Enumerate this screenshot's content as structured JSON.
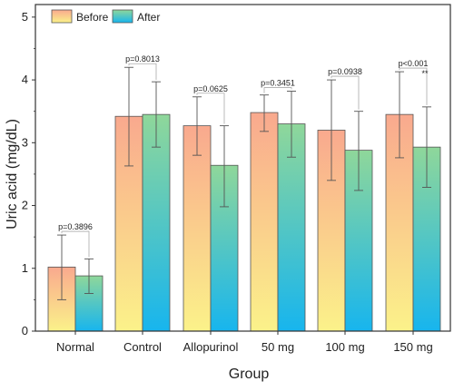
{
  "chart_data": {
    "type": "bar",
    "xlabel": "Group",
    "ylabel": "Uric acid (mg/dL)",
    "ylim": [
      0,
      5.2
    ],
    "yticks": [
      "0",
      "1",
      "2",
      "3",
      "4",
      "5"
    ],
    "categories": [
      "Normal",
      "Control",
      "Allopurinol",
      "50 mg",
      "100 mg",
      "150 mg"
    ],
    "series": [
      {
        "name": "Before",
        "values": [
          1.02,
          3.42,
          3.27,
          3.48,
          3.2,
          3.45
        ],
        "err_low": [
          0.5,
          2.63,
          2.8,
          3.18,
          2.4,
          2.76
        ],
        "err_high": [
          1.53,
          4.2,
          3.73,
          3.76,
          4.0,
          4.13
        ]
      },
      {
        "name": "After",
        "values": [
          0.88,
          3.45,
          2.64,
          3.3,
          2.88,
          2.93
        ],
        "err_low": [
          0.6,
          2.93,
          1.98,
          2.77,
          2.24,
          2.29
        ],
        "err_high": [
          1.15,
          3.97,
          3.27,
          3.82,
          3.5,
          3.57
        ]
      }
    ],
    "pvalues": [
      "p=0.3896",
      "p=0.8013",
      "p=0.0625",
      "p=0.3451",
      "p=0.0938",
      "p<0.001"
    ],
    "significance": [
      "",
      "",
      "",
      "",
      "",
      "**"
    ],
    "legend_position": "top-left",
    "grid": false,
    "colors": {
      "before_top": "#f9a98e",
      "before_bottom": "#fbf28a",
      "after_top": "#8fd79a",
      "after_bottom": "#17b5ee",
      "bar_stroke": "#555555",
      "axis": "#333333",
      "error": "#555555",
      "bracket": "#aaaaaa"
    }
  }
}
